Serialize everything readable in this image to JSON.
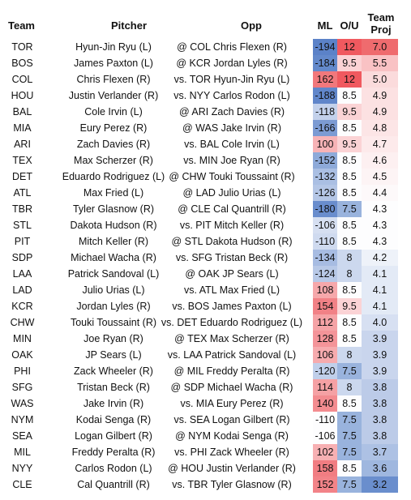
{
  "headers": {
    "team": "Team",
    "pitcher": "Pitcher",
    "opp": "Opp",
    "ml": "ML",
    "ou": "O/U",
    "team_proj_line1": "Team",
    "team_proj_line2": "Proj"
  },
  "rows": [
    {
      "team": "TOR",
      "pitcher": "Hyun-Jin Ryu (L)",
      "opp": "@ COL Chris Flexen (R)",
      "ml": "-194",
      "ou": "12",
      "proj": "7.0",
      "ml_color": "#5b82c8",
      "ou_color": "#f0595f",
      "proj_color": "#ef6b6e"
    },
    {
      "team": "BOS",
      "pitcher": "James Paxton (L)",
      "opp": "@ KCR Jordan Lyles (R)",
      "ml": "-184",
      "ou": "9.5",
      "proj": "5.5",
      "ml_color": "#6389cb",
      "ou_color": "#fbd3d5",
      "proj_color": "#f9c2c4"
    },
    {
      "team": "COL",
      "pitcher": "Chris Flexen (R)",
      "opp": "vs. TOR Hyun-Jin Ryu (L)",
      "ml": "162",
      "ou": "12",
      "proj": "5.0",
      "ml_color": "#f1787c",
      "ou_color": "#f0595f",
      "proj_color": "#fbdbdc"
    },
    {
      "team": "HOU",
      "pitcher": "Justin Verlander (R)",
      "opp": "vs. NYY Carlos Rodon (L)",
      "ml": "-188",
      "ou": "8.5",
      "proj": "4.9",
      "ml_color": "#6086ca",
      "ou_color": "#fdfdfe",
      "proj_color": "#fce1e2"
    },
    {
      "team": "BAL",
      "pitcher": "Cole Irvin (L)",
      "opp": "@ ARI Zach Davies (R)",
      "ml": "-118",
      "ou": "9.5",
      "proj": "4.9",
      "ml_color": "#c3d1eb",
      "ou_color": "#fbd3d5",
      "proj_color": "#fce1e2"
    },
    {
      "team": "MIA",
      "pitcher": "Eury Perez (R)",
      "opp": "@ WAS Jake Irvin (R)",
      "ml": "-166",
      "ou": "8.5",
      "proj": "4.8",
      "ml_color": "#7c9bd3",
      "ou_color": "#fdfdfe",
      "proj_color": "#fce5e6"
    },
    {
      "team": "ARI",
      "pitcher": "Zach Davies (R)",
      "opp": "vs. BAL Cole Irvin (L)",
      "ml": "100",
      "ou": "9.5",
      "proj": "4.7",
      "ml_color": "#f7b3b6",
      "ou_color": "#fbd3d5",
      "proj_color": "#fdeaeb"
    },
    {
      "team": "TEX",
      "pitcher": "Max Scherzer (R)",
      "opp": "vs. MIN Joe Ryan (R)",
      "ml": "-152",
      "ou": "8.5",
      "proj": "4.6",
      "ml_color": "#8eaad9",
      "ou_color": "#fdfdfe",
      "proj_color": "#fdf0f1"
    },
    {
      "team": "DET",
      "pitcher": "Eduardo Rodriguez (L)",
      "opp": "@ CHW Touki Toussaint (R)",
      "ml": "-132",
      "ou": "8.5",
      "proj": "4.5",
      "ml_color": "#aabfe3",
      "ou_color": "#fdfdfe",
      "proj_color": "#fdf4f5"
    },
    {
      "team": "ATL",
      "pitcher": "Max Fried (L)",
      "opp": "@ LAD Julio Urias (L)",
      "ml": "-126",
      "ou": "8.5",
      "proj": "4.4",
      "ml_color": "#b4c6e6",
      "ou_color": "#fdfdfe",
      "proj_color": "#fdf9fa"
    },
    {
      "team": "TBR",
      "pitcher": "Tyler Glasnow (R)",
      "opp": "@ CLE Cal Quantrill (R)",
      "ml": "-180",
      "ou": "7.5",
      "proj": "4.3",
      "ml_color": "#698dcd",
      "ou_color": "#99b3dd",
      "proj_color": "#fdfdfe"
    },
    {
      "team": "STL",
      "pitcher": "Dakota Hudson (R)",
      "opp": "vs. PIT Mitch Keller (R)",
      "ml": "-106",
      "ou": "8.5",
      "proj": "4.3",
      "ml_color": "#d6dff1",
      "ou_color": "#fdfdfe",
      "proj_color": "#fdfdfe"
    },
    {
      "team": "PIT",
      "pitcher": "Mitch Keller (R)",
      "opp": "@ STL Dakota Hudson (R)",
      "ml": "-110",
      "ou": "8.5",
      "proj": "4.3",
      "ml_color": "#cfdaef",
      "ou_color": "#fdfdfe",
      "proj_color": "#fdfdfe"
    },
    {
      "team": "SDP",
      "pitcher": "Michael Wacha (R)",
      "opp": "vs. SFG Tristan Beck (R)",
      "ml": "-134",
      "ou": "8",
      "proj": "4.2",
      "ml_color": "#a7bce2",
      "ou_color": "#ccd8ee",
      "proj_color": "#eef2f9"
    },
    {
      "team": "LAA",
      "pitcher": "Patrick Sandoval (L)",
      "opp": "@ OAK JP Sears (L)",
      "ml": "-124",
      "ou": "8",
      "proj": "4.1",
      "ml_color": "#b8c9e7",
      "ou_color": "#ccd8ee",
      "proj_color": "#e3eaf6"
    },
    {
      "team": "LAD",
      "pitcher": "Julio Urias (L)",
      "opp": "vs. ATL Max Fried (L)",
      "ml": "108",
      "ou": "8.5",
      "proj": "4.1",
      "ml_color": "#f6a8ab",
      "ou_color": "#fdfdfe",
      "proj_color": "#e3eaf6"
    },
    {
      "team": "KCR",
      "pitcher": "Jordan Lyles (R)",
      "opp": "vs. BOS James Paxton (L)",
      "ml": "154",
      "ou": "9.5",
      "proj": "4.1",
      "ml_color": "#f18186",
      "ou_color": "#fbd3d5",
      "proj_color": "#e3eaf6"
    },
    {
      "team": "CHW",
      "pitcher": "Touki Toussaint (R)",
      "opp": "vs. DET Eduardo Rodriguez (L)",
      "ml": "112",
      "ou": "8.5",
      "proj": "4.0",
      "ml_color": "#f5a3a6",
      "ou_color": "#fdfdfe",
      "proj_color": "#d7e0f2"
    },
    {
      "team": "MIN",
      "pitcher": "Joe Ryan (R)",
      "opp": "@ TEX Max Scherzer (R)",
      "ml": "128",
      "ou": "8.5",
      "proj": "3.9",
      "ml_color": "#f49499",
      "ou_color": "#fdfdfe",
      "proj_color": "#c9d5ed"
    },
    {
      "team": "OAK",
      "pitcher": "JP Sears (L)",
      "opp": "vs. LAA Patrick Sandoval (L)",
      "ml": "106",
      "ou": "8",
      "proj": "3.9",
      "ml_color": "#f6abae",
      "ou_color": "#ccd8ee",
      "proj_color": "#c9d5ed"
    },
    {
      "team": "PHI",
      "pitcher": "Zack Wheeler (R)",
      "opp": "@ MIL Freddy Peralta (R)",
      "ml": "-120",
      "ou": "7.5",
      "proj": "3.9",
      "ml_color": "#c0cfea",
      "ou_color": "#99b3dd",
      "proj_color": "#c9d5ed"
    },
    {
      "team": "SFG",
      "pitcher": "Tristan Beck (R)",
      "opp": "@ SDP Michael Wacha (R)",
      "ml": "114",
      "ou": "8",
      "proj": "3.8",
      "ml_color": "#f5a1a4",
      "ou_color": "#ccd8ee",
      "proj_color": "#bccbe8"
    },
    {
      "team": "WAS",
      "pitcher": "Jake Irvin (R)",
      "opp": "vs. MIA Eury Perez (R)",
      "ml": "140",
      "ou": "8.5",
      "proj": "3.8",
      "ml_color": "#f38c90",
      "ou_color": "#fdfdfe",
      "proj_color": "#bccbe8"
    },
    {
      "team": "NYM",
      "pitcher": "Kodai Senga (R)",
      "opp": "vs. SEA Logan Gilbert (R)",
      "ml": "-110",
      "ou": "7.5",
      "proj": "3.8",
      "ml_color": "#fdfdfe",
      "ou_color": "#99b3dd",
      "proj_color": "#bccbe8"
    },
    {
      "team": "SEA",
      "pitcher": "Logan Gilbert (R)",
      "opp": "@ NYM Kodai Senga (R)",
      "ml": "-106",
      "ou": "7.5",
      "proj": "3.8",
      "ml_color": "#fdfdfe",
      "ou_color": "#99b3dd",
      "proj_color": "#bccbe8"
    },
    {
      "team": "MIL",
      "pitcher": "Freddy Peralta (R)",
      "opp": "vs. PHI Zack Wheeler (R)",
      "ml": "102",
      "ou": "7.5",
      "proj": "3.7",
      "ml_color": "#f7b0b3",
      "ou_color": "#99b3dd",
      "proj_color": "#adc1e4"
    },
    {
      "team": "NYY",
      "pitcher": "Carlos Rodon (L)",
      "opp": "@ HOU Justin Verlander (R)",
      "ml": "158",
      "ou": "8.5",
      "proj": "3.6",
      "ml_color": "#f17d82",
      "ou_color": "#fdfdfe",
      "proj_color": "#9fb7df"
    },
    {
      "team": "CLE",
      "pitcher": "Cal Quantrill (R)",
      "opp": "vs. TBR Tyler Glasnow (R)",
      "ml": "152",
      "ou": "7.5",
      "proj": "3.2",
      "ml_color": "#f28388",
      "ou_color": "#99b3dd",
      "proj_color": "#6a8ecd"
    }
  ]
}
